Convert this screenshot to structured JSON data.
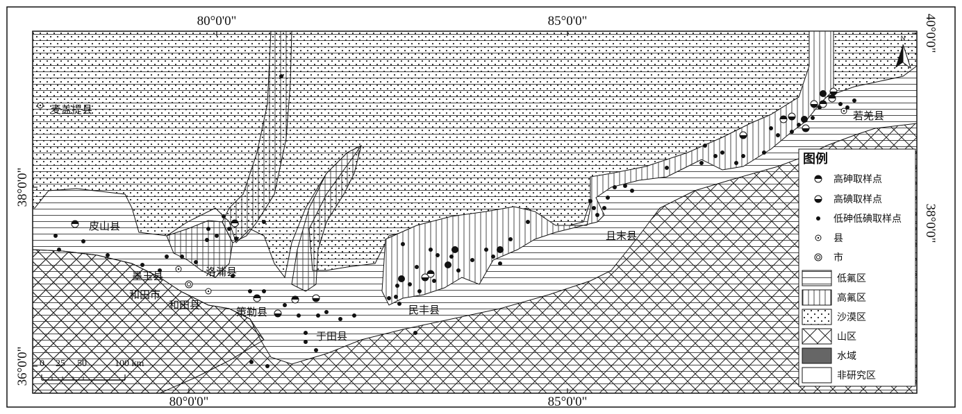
{
  "graticule": {
    "top_labels": [
      "80°0'0\"",
      "85°0'0\""
    ],
    "bottom_labels": [
      "80°0'0\"",
      "85°0'0\""
    ],
    "left_labels": [
      "38°0'0\"",
      "36°0'0\""
    ],
    "right_labels": [
      "40°0'0\"",
      "38°0'0\""
    ]
  },
  "north_arrow": {
    "label": "N"
  },
  "places": [
    {
      "id": "maigaiti",
      "name": "麦盖提县"
    },
    {
      "id": "pishan",
      "name": "皮山县"
    },
    {
      "id": "moyu",
      "name": "墨玉县"
    },
    {
      "id": "hotan-city",
      "name": "和田市"
    },
    {
      "id": "hotan-county",
      "name": "和田县"
    },
    {
      "id": "lop",
      "name": "洛浦县"
    },
    {
      "id": "qira",
      "name": "策勒县"
    },
    {
      "id": "yutian",
      "name": "于田县"
    },
    {
      "id": "minfeng",
      "name": "民丰县"
    },
    {
      "id": "qiemo",
      "name": "且末县"
    },
    {
      "id": "ruoqiang",
      "name": "若羌县"
    }
  ],
  "scale_bar": {
    "ticks": [
      "0",
      "25",
      "50",
      "100 km"
    ]
  },
  "legend": {
    "title": "图例",
    "items": [
      {
        "key": "high-arsenic",
        "label": "高砷取样点"
      },
      {
        "key": "high-iodine",
        "label": "高碘取样点"
      },
      {
        "key": "low-as-low-i",
        "label": "低砷低碘取样点"
      },
      {
        "key": "county",
        "label": "县"
      },
      {
        "key": "city",
        "label": "市"
      },
      {
        "key": "low-fluoride",
        "label": "低氟区"
      },
      {
        "key": "high-fluoride",
        "label": "高氟区"
      },
      {
        "key": "desert",
        "label": "沙漠区"
      },
      {
        "key": "mountain",
        "label": "山区"
      },
      {
        "key": "water",
        "label": "水域"
      },
      {
        "key": "non-study",
        "label": "非研究区"
      }
    ]
  },
  "colors": {
    "ink": "#111111",
    "water": "#666666",
    "background": "#ffffff"
  }
}
